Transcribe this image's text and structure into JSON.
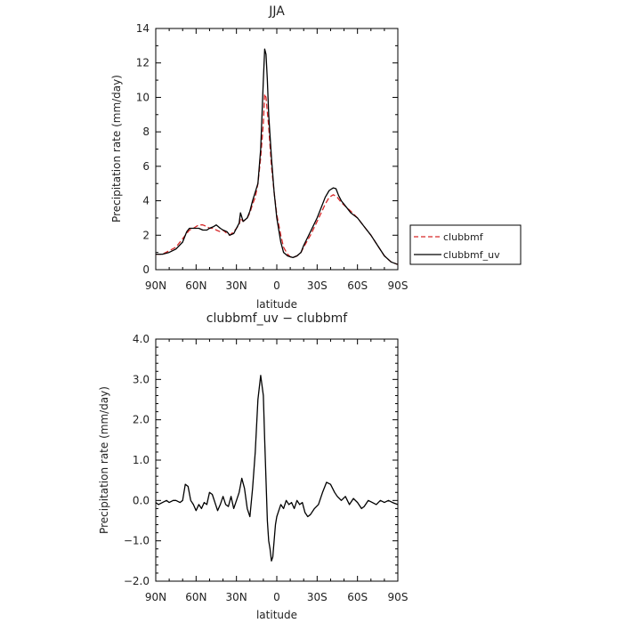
{
  "chart_data": [
    {
      "type": "line",
      "title": "JJA",
      "xlabel": "latitude",
      "ylabel": "Precipitation rate (mm/day)",
      "xlim": [
        90,
        -90
      ],
      "ylim": [
        0,
        14
      ],
      "xticks": [
        90,
        60,
        30,
        0,
        -30,
        -60,
        -90
      ],
      "xtick_labels": [
        "90N",
        "60N",
        "30N",
        "0",
        "30S",
        "60S",
        "90S"
      ],
      "yticks": [
        0,
        2,
        4,
        6,
        8,
        10,
        12,
        14
      ],
      "ytick_labels": [
        "0",
        "2",
        "4",
        "6",
        "8",
        "10",
        "12",
        "14"
      ],
      "legend_position": "right",
      "series": [
        {
          "name": "clubbmf",
          "color": "#d62728",
          "dash": "dashed",
          "x": [
            90,
            85,
            80,
            75,
            70,
            65,
            62,
            58,
            55,
            52,
            50,
            47,
            45,
            42,
            40,
            37,
            35,
            32,
            30,
            28,
            27,
            25,
            22,
            20,
            18,
            16,
            14,
            12,
            10,
            9,
            8,
            6,
            4,
            2,
            0,
            -3,
            -5,
            -8,
            -10,
            -12,
            -15,
            -18,
            -20,
            -25,
            -30,
            -33,
            -36,
            -39,
            -42,
            -45,
            -48,
            -52,
            -55,
            -60,
            -65,
            -70,
            -75,
            -80,
            -85,
            -90
          ],
          "y": [
            0.9,
            0.9,
            1.1,
            1.3,
            1.8,
            2.3,
            2.4,
            2.6,
            2.6,
            2.5,
            2.4,
            2.4,
            2.3,
            2.2,
            2.3,
            2.1,
            2.0,
            2.2,
            2.4,
            2.6,
            3.0,
            2.8,
            3.0,
            3.3,
            3.8,
            4.2,
            5.0,
            6.5,
            8.5,
            10.2,
            10.0,
            8.3,
            6.0,
            4.5,
            3.2,
            2.0,
            1.3,
            0.9,
            0.75,
            0.7,
            0.8,
            1.0,
            1.3,
            2.0,
            2.8,
            3.3,
            3.8,
            4.2,
            4.35,
            4.2,
            3.9,
            3.6,
            3.4,
            3.0,
            2.5,
            2.0,
            1.4,
            0.8,
            0.45,
            0.3
          ]
        },
        {
          "name": "clubbmf_uv",
          "color": "#000000",
          "dash": "solid",
          "x": [
            90,
            85,
            80,
            75,
            70,
            67,
            65,
            62,
            58,
            55,
            52,
            50,
            47,
            45,
            42,
            40,
            37,
            35,
            32,
            30,
            28,
            27,
            25,
            22,
            20,
            18,
            16,
            14,
            12,
            10,
            9,
            8,
            7,
            6,
            4,
            2,
            0,
            -3,
            -5,
            -8,
            -10,
            -12,
            -15,
            -18,
            -20,
            -25,
            -30,
            -33,
            -36,
            -39,
            -42,
            -44,
            -46,
            -48,
            -52,
            -55,
            -60,
            -65,
            -70,
            -75,
            -80,
            -85,
            -90
          ],
          "y": [
            0.9,
            0.9,
            1.0,
            1.2,
            1.6,
            2.2,
            2.4,
            2.4,
            2.4,
            2.3,
            2.3,
            2.4,
            2.5,
            2.6,
            2.4,
            2.3,
            2.2,
            2.0,
            2.1,
            2.4,
            2.7,
            3.3,
            2.8,
            3.0,
            3.4,
            4.0,
            4.5,
            5.0,
            7.0,
            11.0,
            12.8,
            12.5,
            11.0,
            9.0,
            6.5,
            4.5,
            3.0,
            1.6,
            1.0,
            0.8,
            0.75,
            0.7,
            0.8,
            1.0,
            1.4,
            2.2,
            3.0,
            3.6,
            4.2,
            4.6,
            4.75,
            4.7,
            4.3,
            4.0,
            3.6,
            3.3,
            3.0,
            2.5,
            2.0,
            1.4,
            0.8,
            0.45,
            0.3
          ]
        }
      ]
    },
    {
      "type": "line",
      "title": "clubbmf_uv − clubbmf",
      "xlabel": "latitude",
      "ylabel": "Precipitation rate (mm/day)",
      "xlim": [
        90,
        -90
      ],
      "ylim": [
        -2.0,
        4.0
      ],
      "xticks": [
        90,
        60,
        30,
        0,
        -30,
        -60,
        -90
      ],
      "xtick_labels": [
        "90N",
        "60N",
        "30N",
        "0",
        "30S",
        "60S",
        "90S"
      ],
      "yticks": [
        -2.0,
        -1.0,
        0.0,
        1.0,
        2.0,
        3.0,
        4.0
      ],
      "ytick_labels": [
        "−2.0",
        "−1.0",
        "0.0",
        "1.0",
        "2.0",
        "3.0",
        "4.0"
      ],
      "series": [
        {
          "color": "#000000",
          "dash": "solid",
          "x": [
            90,
            88,
            85,
            82,
            80,
            77,
            75,
            72,
            70,
            68,
            66,
            64,
            62,
            60,
            58,
            56,
            54,
            52,
            50,
            48,
            46,
            44,
            42,
            40,
            38,
            36,
            34,
            32,
            30,
            28,
            26,
            24,
            22,
            20,
            18,
            16,
            14,
            12,
            10,
            9,
            8,
            7,
            6,
            5,
            4,
            3,
            2,
            1,
            0,
            -1,
            -3,
            -5,
            -7,
            -9,
            -11,
            -13,
            -15,
            -17,
            -19,
            -21,
            -23,
            -25,
            -28,
            -31,
            -34,
            -37,
            -40,
            -43,
            -45,
            -48,
            -51,
            -54,
            -57,
            -60,
            -63,
            -65,
            -68,
            -71,
            -74,
            -77,
            -80,
            -83,
            -86,
            -90
          ],
          "y": [
            -0.05,
            -0.1,
            -0.05,
            0.0,
            -0.05,
            0.0,
            0.0,
            -0.05,
            0.0,
            0.4,
            0.35,
            0.0,
            -0.1,
            -0.25,
            -0.1,
            -0.2,
            -0.05,
            -0.1,
            0.2,
            0.15,
            -0.05,
            -0.25,
            -0.1,
            0.1,
            -0.1,
            -0.15,
            0.1,
            -0.2,
            0.0,
            0.2,
            0.55,
            0.3,
            -0.2,
            -0.4,
            0.3,
            1.2,
            2.5,
            3.1,
            2.6,
            1.5,
            0.5,
            -0.5,
            -1.0,
            -1.2,
            -1.5,
            -1.4,
            -1.0,
            -0.6,
            -0.4,
            -0.3,
            -0.1,
            -0.2,
            0.0,
            -0.1,
            -0.05,
            -0.2,
            0.0,
            -0.1,
            -0.05,
            -0.3,
            -0.4,
            -0.35,
            -0.2,
            -0.1,
            0.2,
            0.45,
            0.4,
            0.2,
            0.1,
            0.0,
            0.1,
            -0.1,
            0.05,
            -0.05,
            -0.2,
            -0.15,
            0.0,
            -0.05,
            -0.1,
            0.0,
            -0.05,
            0.0,
            -0.05,
            -0.1
          ]
        }
      ]
    }
  ]
}
